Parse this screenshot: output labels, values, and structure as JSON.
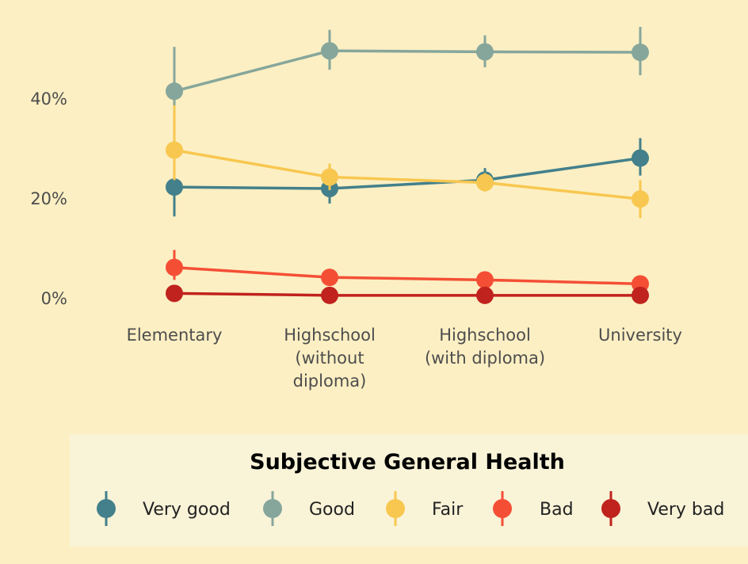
{
  "chart_data": {
    "type": "line",
    "categories": [
      "Elementary",
      "Highschool\n(without\ndiploma)",
      "Highschool\n(with diploma)",
      "University"
    ],
    "y_axis": {
      "ticks": [
        "0%",
        "20%",
        "40%"
      ],
      "tick_values": [
        0,
        20,
        40
      ],
      "ylim": [
        -2,
        55
      ]
    },
    "legend": {
      "title": "Subjective General Health",
      "placement": "bottom"
    },
    "grid": false,
    "series": [
      {
        "name": "Very good",
        "color": "#43808b",
        "values": [
          22.2,
          21.9,
          23.6,
          28.0
        ],
        "err_low": [
          16.3,
          18.9,
          21.7,
          24.5
        ],
        "err_high": [
          29.0,
          23.4,
          26.0,
          32.0
        ]
      },
      {
        "name": "Good",
        "color": "#86a69b",
        "values": [
          41.4,
          49.5,
          49.3,
          49.2
        ],
        "err_low": [
          38.0,
          45.7,
          46.2,
          44.6
        ],
        "err_high": [
          50.3,
          53.7,
          52.6,
          54.3
        ]
      },
      {
        "name": "Fair",
        "color": "#f8c750",
        "values": [
          29.6,
          24.2,
          23.1,
          19.8
        ],
        "err_low": [
          23.6,
          21.6,
          21.3,
          16.0
        ],
        "err_high": [
          38.6,
          26.9,
          25.0,
          23.6
        ]
      },
      {
        "name": "Bad",
        "color": "#f44f35",
        "values": [
          6.1,
          4.1,
          3.6,
          2.8
        ],
        "err_low": [
          3.6,
          2.8,
          2.2,
          1.9
        ],
        "err_high": [
          9.6,
          5.0,
          4.8,
          3.5
        ]
      },
      {
        "name": "Very bad",
        "color": "#c0221d",
        "values": [
          0.9,
          0.5,
          0.5,
          0.5
        ],
        "err_low": [
          0.3,
          0.2,
          0.2,
          0.2
        ],
        "err_high": [
          1.5,
          0.9,
          0.9,
          0.8
        ]
      }
    ]
  }
}
